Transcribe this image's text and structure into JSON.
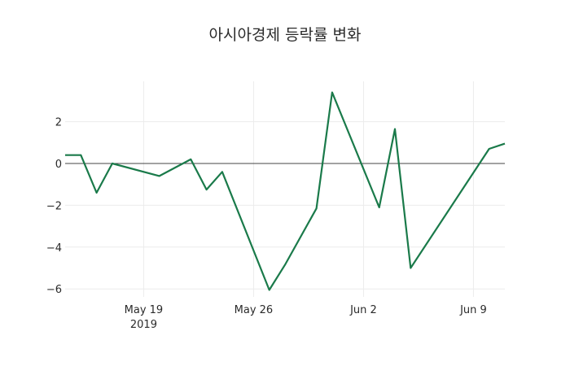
{
  "chart_data": {
    "type": "line",
    "title": "아시아경제 등락률 변화",
    "xlabel": "",
    "ylabel": "",
    "x": [
      "2019-05-14",
      "2019-05-15",
      "2019-05-16",
      "2019-05-17",
      "2019-05-20",
      "2019-05-22",
      "2019-05-23",
      "2019-05-24",
      "2019-05-27",
      "2019-05-28",
      "2019-05-30",
      "2019-05-31",
      "2019-06-03",
      "2019-06-04",
      "2019-06-05",
      "2019-06-10",
      "2019-06-11"
    ],
    "series": [
      {
        "name": "등락률",
        "color": "#1a7a4a",
        "values": [
          0.4,
          0.4,
          -1.4,
          0.0,
          -0.6,
          0.2,
          -1.25,
          -0.4,
          -6.05,
          -4.85,
          -2.15,
          3.4,
          -2.1,
          1.65,
          -5.0,
          0.7,
          0.95
        ]
      }
    ],
    "ylim": [
      -6.5,
      3.9
    ],
    "xlim": [
      "2019-05-14",
      "2019-06-11"
    ],
    "y_ticks": [
      2,
      0,
      -2,
      -4,
      -6
    ],
    "y_tick_labels": [
      "2",
      "0",
      "−2",
      "−4",
      "−6"
    ],
    "x_ticks": [
      "2019-05-19",
      "2019-05-26",
      "2019-06-02",
      "2019-06-09"
    ],
    "x_tick_labels": [
      "May 19",
      "May 26",
      "Jun 2",
      "Jun 9"
    ],
    "x_tick_sublabel": "2019",
    "grid": true,
    "legend": false
  }
}
